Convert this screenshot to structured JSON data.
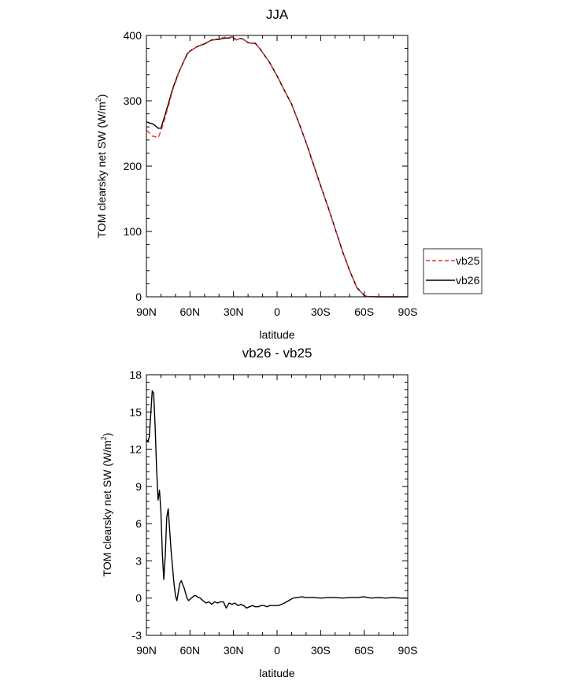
{
  "chart_data": [
    {
      "type": "line",
      "title": "JJA",
      "xlabel": "latitude",
      "ylabel": "TOM clearsky net SW (W/m²)",
      "ylabel_main": "TOM clearsky net SW (W/m",
      "ylabel_sup": "2",
      "ylabel_close": ")",
      "xlim": [
        90,
        -90
      ],
      "ylim": [
        0,
        400
      ],
      "x_ticks": [
        90,
        60,
        30,
        0,
        -30,
        -60,
        -90
      ],
      "x_tick_labels": [
        "90N",
        "60N",
        "30N",
        "0",
        "30S",
        "60S",
        "90S"
      ],
      "y_ticks": [
        0,
        100,
        200,
        300,
        400
      ],
      "y_tick_labels": [
        "0",
        "100",
        "200",
        "300",
        "400"
      ],
      "legend_position": "outside-right",
      "series": [
        {
          "name": "vb25",
          "color": "#e8312f",
          "dashed": true,
          "x": [
            90,
            88,
            86,
            84,
            82,
            80,
            78,
            76,
            74,
            72,
            70,
            68,
            65,
            62,
            60,
            55,
            50,
            45,
            40,
            38,
            35,
            33,
            31,
            30,
            28,
            26,
            24,
            22,
            20,
            18,
            15,
            12,
            10,
            5,
            0,
            -5,
            -10,
            -15,
            -20,
            -25,
            -30,
            -35,
            -40,
            -45,
            -50,
            -55,
            -60,
            -62,
            -64,
            -66,
            -68,
            -70,
            -72,
            -75,
            -80,
            -85,
            -90
          ],
          "y": [
            255,
            251,
            246,
            245,
            243,
            254,
            267,
            283,
            298,
            316,
            328,
            341,
            357,
            372,
            376,
            383,
            388,
            393,
            395,
            396,
            398,
            397,
            398,
            396,
            393,
            395,
            395,
            392,
            389,
            388,
            388,
            380,
            374,
            358,
            338,
            316,
            295,
            266,
            236,
            203,
            170,
            138,
            104,
            70,
            40,
            14,
            2,
            0.5,
            0.3,
            0.2,
            0.1,
            0,
            0,
            0,
            0,
            0,
            0
          ]
        },
        {
          "name": "vb26",
          "color": "#000000",
          "dashed": false,
          "x": [
            90,
            88,
            86,
            84,
            82,
            80,
            78,
            76,
            74,
            72,
            70,
            68,
            65,
            62,
            60,
            55,
            50,
            45,
            40,
            38,
            35,
            33,
            31,
            30,
            28,
            26,
            24,
            22,
            20,
            18,
            15,
            12,
            10,
            5,
            0,
            -5,
            -10,
            -15,
            -20,
            -25,
            -30,
            -35,
            -40,
            -45,
            -50,
            -55,
            -60,
            -62,
            -64,
            -66,
            -68,
            -70,
            -72,
            -75,
            -80,
            -85,
            -90
          ],
          "y": [
            268,
            266,
            265,
            262,
            258,
            258,
            272,
            287,
            302,
            318,
            330,
            342,
            357,
            371,
            376,
            383,
            387,
            393,
            394,
            395,
            396,
            396,
            398,
            396,
            393,
            395,
            395,
            392,
            389,
            388,
            388,
            380,
            374,
            358,
            338,
            316,
            295,
            266,
            236,
            203,
            170,
            138,
            104,
            70,
            40,
            14,
            2,
            0.5,
            0.3,
            0.2,
            0.1,
            0,
            0,
            0,
            0,
            0,
            0
          ]
        }
      ]
    },
    {
      "type": "line",
      "title": "vb26 - vb25",
      "xlabel": "latitude",
      "ylabel": "TOM clearsky net SW (W/m²)",
      "ylabel_main": "TOM clearsky net SW (W/m",
      "ylabel_sup": "2",
      "ylabel_close": ")",
      "xlim": [
        90,
        -90
      ],
      "ylim": [
        -3,
        18
      ],
      "x_ticks": [
        90,
        60,
        30,
        0,
        -30,
        -60,
        -90
      ],
      "x_tick_labels": [
        "90N",
        "60N",
        "30N",
        "0",
        "30S",
        "60S",
        "90S"
      ],
      "y_ticks": [
        -3,
        0,
        3,
        6,
        9,
        12,
        15,
        18
      ],
      "y_tick_labels": [
        "-3",
        "0",
        "3",
        "6",
        "9",
        "12",
        "15",
        "18"
      ],
      "series": [
        {
          "color": "#000000",
          "dashed": false,
          "x": [
            90,
            89,
            88,
            87,
            86,
            85,
            84,
            83,
            82,
            81,
            80,
            79,
            78,
            77,
            76,
            75,
            74,
            73,
            72,
            71,
            70,
            69,
            68,
            67,
            66,
            65,
            64,
            63,
            62,
            61,
            60,
            59,
            58,
            57,
            56,
            55,
            53,
            51,
            49,
            47,
            45,
            43,
            41,
            39,
            37,
            35,
            33,
            31,
            29,
            27,
            25,
            23,
            21,
            19,
            17,
            15,
            13,
            11,
            9,
            7,
            5,
            3,
            1,
            -1,
            -3,
            -5,
            -8,
            -11,
            -14,
            -17,
            -20,
            -25,
            -30,
            -35,
            -40,
            -45,
            -50,
            -55,
            -60,
            -65,
            -70,
            -75,
            -80,
            -85,
            -90
          ],
          "y": [
            12.8,
            12.6,
            13.0,
            14.8,
            16.7,
            16.5,
            13.8,
            10.5,
            7.9,
            8.7,
            7.0,
            3.5,
            1.5,
            3.5,
            6.5,
            7.2,
            5.5,
            3.8,
            2.5,
            1.2,
            0.2,
            -0.2,
            0.5,
            1.2,
            1.4,
            1.1,
            0.8,
            0.4,
            0.0,
            -0.2,
            -0.1,
            0.0,
            0.1,
            0.2,
            0.2,
            0.1,
            0.0,
            -0.2,
            -0.4,
            -0.3,
            -0.5,
            -0.3,
            -0.4,
            -0.3,
            -0.3,
            -0.8,
            -0.4,
            -0.5,
            -0.4,
            -0.6,
            -0.5,
            -0.6,
            -0.8,
            -0.7,
            -0.6,
            -0.7,
            -0.7,
            -0.6,
            -0.6,
            -0.7,
            -0.6,
            -0.6,
            -0.6,
            -0.6,
            -0.5,
            -0.4,
            -0.2,
            0.0,
            0.05,
            0.1,
            0.05,
            0.05,
            0.0,
            0.05,
            0.05,
            0.0,
            0.05,
            0.05,
            0.1,
            0.0,
            0.05,
            0.0,
            0.05,
            0.0,
            0.0
          ]
        }
      ]
    }
  ]
}
